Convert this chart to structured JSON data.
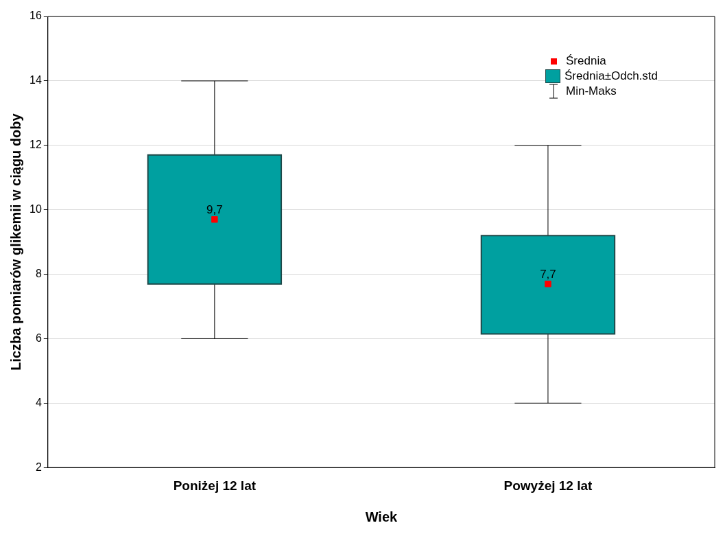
{
  "chart_data": {
    "type": "box",
    "xlabel": "Wiek",
    "ylabel": "Liczba pomiarów glikemii w ciągu doby",
    "categories": [
      "Poniżej 12 lat",
      "Powyżej 12 lat"
    ],
    "ylim": [
      2,
      16
    ],
    "yticks": [
      2,
      4,
      6,
      8,
      10,
      12,
      14,
      16
    ],
    "grid": "y",
    "legend": "top right",
    "series": [
      {
        "type": "box",
        "name": "Średnia±Odch.std",
        "color": "#00a0a0",
        "boxes": [
          {
            "low": 6,
            "q1": 7.7,
            "q3": 11.7,
            "high": 14
          },
          {
            "low": 4,
            "q1": 6.15,
            "q3": 9.2,
            "high": 12
          }
        ]
      },
      {
        "type": "scatter",
        "name": "Średnia",
        "color": "#ff0000",
        "x": [
          "Poniżej 12 lat",
          "Powyżej 12 lat"
        ],
        "values": [
          9.7,
          7.7
        ],
        "value_labels": [
          "9,7",
          "7,7"
        ],
        "marker": "square"
      }
    ],
    "annotations": [
      "Min-Maks"
    ]
  }
}
